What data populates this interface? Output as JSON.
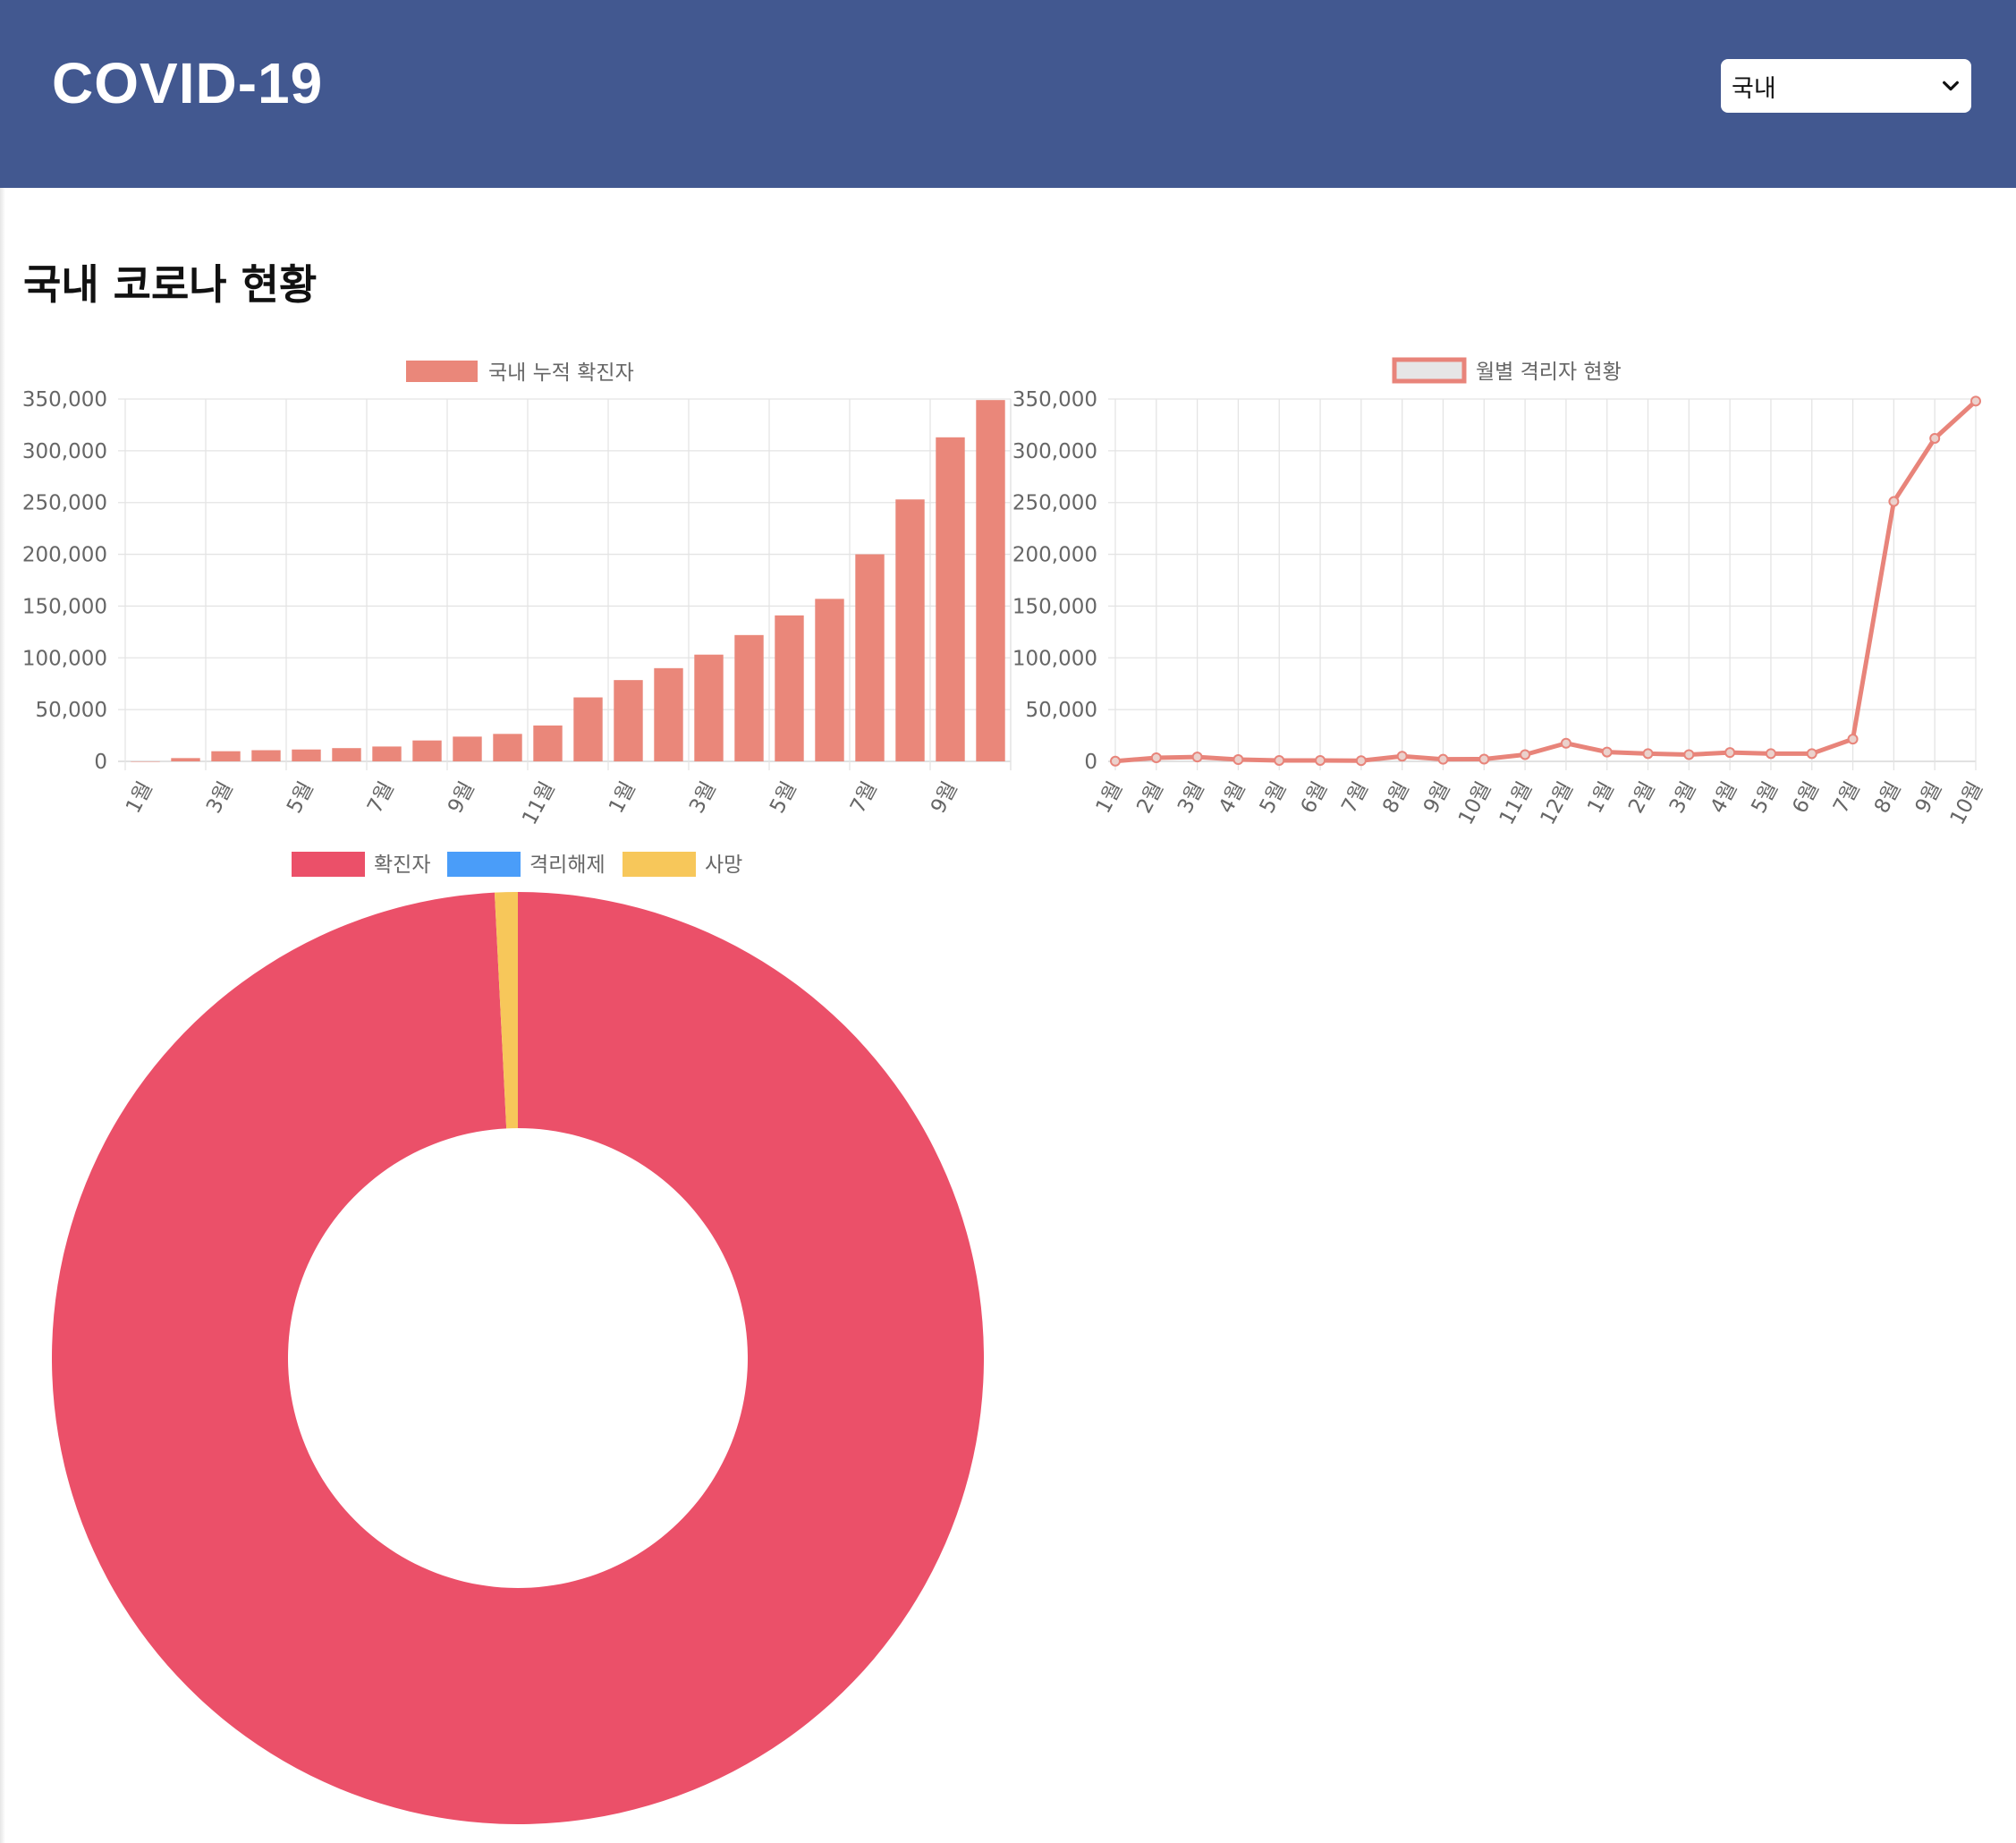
{
  "header": {
    "logo": "COVID-19",
    "region_select": {
      "selected": "국내"
    }
  },
  "main": {
    "title": "국내 코로나 현황"
  },
  "colors": {
    "header_bg": "#425890",
    "bar": "#EA877A",
    "line": "#E8847A",
    "donut": [
      "#EB5069",
      "#4A9DF9",
      "#F7C75A"
    ]
  },
  "chart_data": [
    {
      "type": "bar",
      "legend": [
        "국내 누적 확진자"
      ],
      "legend_position": "top",
      "grid": true,
      "ylim": [
        0,
        350000
      ],
      "yticks": [
        "0",
        "50,000",
        "100,000",
        "150,000",
        "200,000",
        "250,000",
        "300,000",
        "350,000"
      ],
      "categories": [
        "1월",
        "2월",
        "3월",
        "4월",
        "5월",
        "6월",
        "7월",
        "8월",
        "9월",
        "10월",
        "11월",
        "12월",
        "1월",
        "2월",
        "3월",
        "4월",
        "5월",
        "6월",
        "7월",
        "8월",
        "9월",
        "10월"
      ],
      "shown_xticks": [
        "1월",
        "3월",
        "5월",
        "7월",
        "9월",
        "11월",
        "1월",
        "3월",
        "5월",
        "7월",
        "9월"
      ],
      "series": [
        {
          "name": "국내 누적 확진자",
          "values": [
            11,
            3150,
            9786,
            10774,
            11468,
            12800,
            14336,
            20182,
            23889,
            26511,
            34652,
            61769,
            78508,
            90029,
            103088,
            122007,
            140970,
            156961,
            200000,
            253000,
            313000,
            349000
          ]
        }
      ]
    },
    {
      "type": "line",
      "legend": [
        "월별 격리자 현황"
      ],
      "legend_position": "top",
      "grid": true,
      "ylim": [
        0,
        350000
      ],
      "yticks": [
        "0",
        "50,000",
        "100,000",
        "150,000",
        "200,000",
        "250,000",
        "300,000",
        "350,000"
      ],
      "x": [
        "1월",
        "2월",
        "3월",
        "4월",
        "5월",
        "6월",
        "7월",
        "8월",
        "9월",
        "10월",
        "11월",
        "12월",
        "1월",
        "2월",
        "3월",
        "4월",
        "5월",
        "6월",
        "7월",
        "8월",
        "9월",
        "10월"
      ],
      "series": [
        {
          "name": "월별 격리자 현황",
          "values": [
            200,
            3500,
            4200,
            1700,
            900,
            900,
            700,
            5000,
            2000,
            2200,
            6500,
            17500,
            9000,
            7500,
            6500,
            8500,
            7500,
            7500,
            21500,
            251000,
            312000,
            348000
          ]
        }
      ]
    },
    {
      "type": "pie",
      "legend": [
        "확진자",
        "격리해제",
        "사망"
      ],
      "legend_position": "top",
      "values": [
        349000,
        0,
        2800
      ]
    }
  ]
}
